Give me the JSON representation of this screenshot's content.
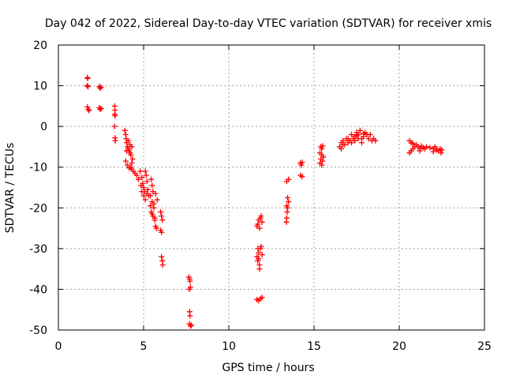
{
  "chart_data": {
    "type": "scatter",
    "title": "Day 042 of 2022, Sidereal Day-to-day VTEC variation (SDTVAR) for receiver xmis",
    "xlabel": "GPS time / hours",
    "ylabel": "SDTVAR / TECUs",
    "xlim": [
      0,
      25
    ],
    "ylim": [
      -50,
      20
    ],
    "xticks": [
      0,
      5,
      10,
      15,
      20,
      25
    ],
    "yticks": [
      -50,
      -40,
      -30,
      -20,
      -10,
      0,
      10,
      20
    ],
    "xtick_labels": [
      "0",
      "5",
      "10",
      "15",
      "20",
      "25"
    ],
    "ytick_labels": [
      "-50",
      "-40",
      "-30",
      "-20",
      "-10",
      "0",
      "10",
      "20"
    ],
    "grid": true,
    "marker": "plus",
    "color": "#ff0000",
    "series": [
      {
        "name": "SDTVAR",
        "points": [
          [
            1.7,
            12.0
          ],
          [
            1.72,
            11.8
          ],
          [
            1.68,
            10.0
          ],
          [
            1.74,
            9.8
          ],
          [
            1.7,
            4.8
          ],
          [
            1.75,
            4.2
          ],
          [
            1.8,
            3.9
          ],
          [
            2.4,
            9.8
          ],
          [
            2.45,
            9.4
          ],
          [
            2.5,
            9.6
          ],
          [
            2.4,
            4.6
          ],
          [
            2.45,
            4.2
          ],
          [
            2.5,
            4.4
          ],
          [
            3.3,
            5.0
          ],
          [
            3.32,
            4.0
          ],
          [
            3.3,
            3.0
          ],
          [
            3.33,
            2.6
          ],
          [
            3.3,
            0.0
          ],
          [
            3.32,
            -2.8
          ],
          [
            3.34,
            -3.5
          ],
          [
            3.9,
            -1.0
          ],
          [
            3.95,
            -2.0
          ],
          [
            3.98,
            -3.0
          ],
          [
            4.0,
            -4.0
          ],
          [
            4.05,
            -5.0
          ],
          [
            4.1,
            -5.5
          ],
          [
            4.15,
            -6.0
          ],
          [
            4.2,
            -6.5
          ],
          [
            4.25,
            -7.0
          ],
          [
            4.3,
            -5.0
          ],
          [
            4.35,
            -8.0
          ],
          [
            4.0,
            -6.0
          ],
          [
            4.1,
            -3.5
          ],
          [
            4.2,
            -4.5
          ],
          [
            4.3,
            -9.0
          ],
          [
            4.25,
            -10.0
          ],
          [
            3.95,
            -8.5
          ],
          [
            4.05,
            -9.5
          ],
          [
            4.15,
            -10.2
          ],
          [
            4.3,
            -10.5
          ],
          [
            4.4,
            -11.0
          ],
          [
            4.5,
            -11.5
          ],
          [
            4.6,
            -12.0
          ],
          [
            4.7,
            -13.0
          ],
          [
            4.8,
            -11.0
          ],
          [
            4.9,
            -12.5
          ],
          [
            4.95,
            -14.0
          ],
          [
            5.0,
            -15.0
          ],
          [
            5.05,
            -16.0
          ],
          [
            5.1,
            -11.0
          ],
          [
            5.15,
            -12.0
          ],
          [
            5.2,
            -13.5
          ],
          [
            5.25,
            -15.5
          ],
          [
            5.3,
            -17.0
          ],
          [
            4.85,
            -14.5
          ],
          [
            4.9,
            -16.0
          ],
          [
            5.0,
            -17.0
          ],
          [
            5.1,
            -18.0
          ],
          [
            5.2,
            -16.5
          ],
          [
            5.45,
            -13.0
          ],
          [
            5.5,
            -14.5
          ],
          [
            5.55,
            -16.0
          ],
          [
            5.4,
            -17.0
          ],
          [
            5.5,
            -18.5
          ],
          [
            5.6,
            -20.0
          ],
          [
            5.45,
            -21.0
          ],
          [
            5.55,
            -22.0
          ],
          [
            5.65,
            -23.0
          ],
          [
            5.7,
            -24.5
          ],
          [
            5.75,
            -25.0
          ],
          [
            5.6,
            -19.0
          ],
          [
            5.7,
            -16.5
          ],
          [
            5.8,
            -18.0
          ],
          [
            5.4,
            -19.5
          ],
          [
            5.5,
            -21.5
          ],
          [
            5.65,
            -22.5
          ],
          [
            6.0,
            -21.0
          ],
          [
            6.05,
            -22.0
          ],
          [
            6.1,
            -23.0
          ],
          [
            6.0,
            -25.5
          ],
          [
            6.05,
            -26.0
          ],
          [
            6.05,
            -32.0
          ],
          [
            6.1,
            -33.0
          ],
          [
            6.12,
            -34.0
          ],
          [
            7.65,
            -37.0
          ],
          [
            7.7,
            -37.5
          ],
          [
            7.72,
            -38.0
          ],
          [
            7.68,
            -40.0
          ],
          [
            7.75,
            -39.5
          ],
          [
            7.7,
            -45.5
          ],
          [
            7.72,
            -46.5
          ],
          [
            7.68,
            -48.5
          ],
          [
            7.75,
            -49.0
          ],
          [
            7.8,
            -48.8
          ],
          [
            11.65,
            -24.5
          ],
          [
            11.7,
            -24.0
          ],
          [
            11.75,
            -23.0
          ],
          [
            11.8,
            -25.0
          ],
          [
            11.85,
            -22.5
          ],
          [
            11.9,
            -22.0
          ],
          [
            11.95,
            -23.5
          ],
          [
            11.7,
            -30.0
          ],
          [
            11.75,
            -31.0
          ],
          [
            11.65,
            -32.0
          ],
          [
            11.7,
            -33.0
          ],
          [
            11.8,
            -34.0
          ],
          [
            11.75,
            -32.5
          ],
          [
            11.85,
            -30.0
          ],
          [
            11.9,
            -29.5
          ],
          [
            11.95,
            -31.5
          ],
          [
            11.8,
            -35.0
          ],
          [
            11.65,
            -42.5
          ],
          [
            11.75,
            -42.8
          ],
          [
            11.85,
            -42.3
          ],
          [
            11.95,
            -42.0
          ],
          [
            13.4,
            -13.5
          ],
          [
            13.5,
            -13.0
          ],
          [
            13.45,
            -17.5
          ],
          [
            13.5,
            -18.5
          ],
          [
            13.4,
            -19.5
          ],
          [
            13.45,
            -20.0
          ],
          [
            13.42,
            -21.0
          ],
          [
            13.4,
            -22.5
          ],
          [
            13.38,
            -23.5
          ],
          [
            14.2,
            -9.0
          ],
          [
            14.25,
            -9.5
          ],
          [
            14.3,
            -8.8
          ],
          [
            14.2,
            -12.0
          ],
          [
            14.3,
            -12.3
          ],
          [
            15.4,
            -5.0
          ],
          [
            15.45,
            -5.5
          ],
          [
            15.5,
            -4.8
          ],
          [
            15.35,
            -6.5
          ],
          [
            15.45,
            -7.0
          ],
          [
            15.4,
            -8.0
          ],
          [
            15.5,
            -8.5
          ],
          [
            15.35,
            -9.0
          ],
          [
            15.45,
            -9.5
          ],
          [
            15.55,
            -7.5
          ],
          [
            16.5,
            -5.0
          ],
          [
            16.6,
            -4.0
          ],
          [
            16.7,
            -3.5
          ],
          [
            16.8,
            -4.5
          ],
          [
            16.9,
            -3.0
          ],
          [
            17.0,
            -4.0
          ],
          [
            17.1,
            -3.5
          ],
          [
            17.2,
            -2.0
          ],
          [
            17.3,
            -3.0
          ],
          [
            17.4,
            -2.5
          ],
          [
            17.5,
            -1.5
          ],
          [
            17.6,
            -2.0
          ],
          [
            17.7,
            -1.0
          ],
          [
            17.8,
            -3.0
          ],
          [
            17.9,
            -2.5
          ],
          [
            18.0,
            -1.5
          ],
          [
            18.1,
            -2.0
          ],
          [
            18.2,
            -3.0
          ],
          [
            18.3,
            -2.0
          ],
          [
            18.4,
            -3.5
          ],
          [
            18.5,
            -3.0
          ],
          [
            18.6,
            -3.5
          ],
          [
            17.0,
            -3.0
          ],
          [
            17.2,
            -4.0
          ],
          [
            17.4,
            -3.5
          ],
          [
            17.6,
            -3.0
          ],
          [
            17.8,
            -4.0
          ],
          [
            16.6,
            -5.5
          ],
          [
            16.7,
            -4.5
          ],
          [
            17.5,
            -2.2
          ],
          [
            17.9,
            -1.8
          ],
          [
            20.6,
            -3.5
          ],
          [
            20.7,
            -4.0
          ],
          [
            20.8,
            -5.5
          ],
          [
            20.9,
            -5.0
          ],
          [
            21.0,
            -4.5
          ],
          [
            21.1,
            -5.0
          ],
          [
            21.2,
            -5.5
          ],
          [
            21.3,
            -4.8
          ],
          [
            21.4,
            -5.2
          ],
          [
            21.5,
            -5.5
          ],
          [
            20.7,
            -6.0
          ],
          [
            20.6,
            -6.5
          ],
          [
            20.8,
            -4.2
          ],
          [
            21.2,
            -6.0
          ],
          [
            21.6,
            -5.0
          ],
          [
            21.8,
            -5.2
          ],
          [
            22.0,
            -5.5
          ],
          [
            22.1,
            -5.0
          ],
          [
            22.2,
            -5.8
          ],
          [
            22.3,
            -6.0
          ],
          [
            22.4,
            -5.5
          ],
          [
            22.5,
            -5.8
          ],
          [
            22.0,
            -6.2
          ],
          [
            22.45,
            -6.5
          ]
        ]
      }
    ]
  }
}
